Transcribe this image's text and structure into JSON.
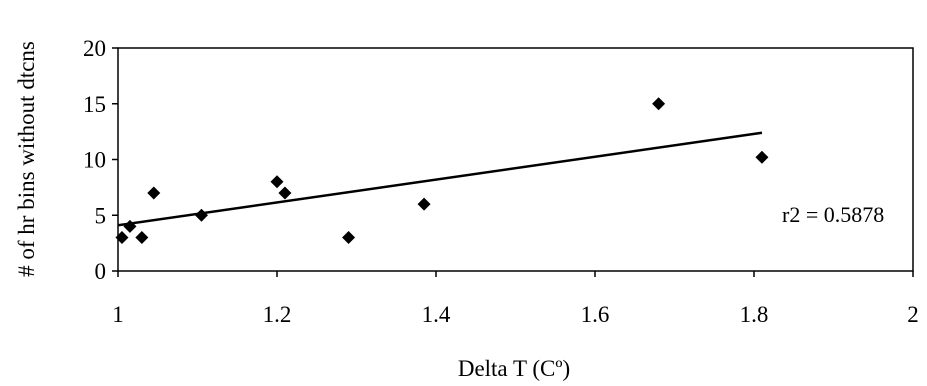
{
  "chart_data": {
    "type": "scatter",
    "xlabel": "Delta T (Cº)",
    "ylabel": "# of hr bins without dtcns",
    "xlim": [
      1,
      2
    ],
    "ylim": [
      0,
      20
    ],
    "x_ticks": [
      "1",
      "1.2",
      "1.4",
      "1.6",
      "1.8",
      "2"
    ],
    "y_ticks": [
      "0",
      "5",
      "10",
      "15",
      "20"
    ],
    "grid": false,
    "legend": "none",
    "annotation": "r2 = 0.5878",
    "series": [
      {
        "points": [
          {
            "x": 1.005,
            "y": 3
          },
          {
            "x": 1.015,
            "y": 4
          },
          {
            "x": 1.03,
            "y": 3
          },
          {
            "x": 1.045,
            "y": 7
          },
          {
            "x": 1.105,
            "y": 5
          },
          {
            "x": 1.2,
            "y": 8
          },
          {
            "x": 1.21,
            "y": 7
          },
          {
            "x": 1.29,
            "y": 3
          },
          {
            "x": 1.385,
            "y": 6
          },
          {
            "x": 1.68,
            "y": 15
          },
          {
            "x": 1.81,
            "y": 10.2
          }
        ]
      }
    ],
    "trendline": {
      "x": [
        1.0,
        1.81
      ],
      "y": [
        4.1,
        12.4
      ]
    },
    "colors": {
      "marker": "#000000",
      "line": "#000000",
      "axis": "#000000"
    }
  }
}
